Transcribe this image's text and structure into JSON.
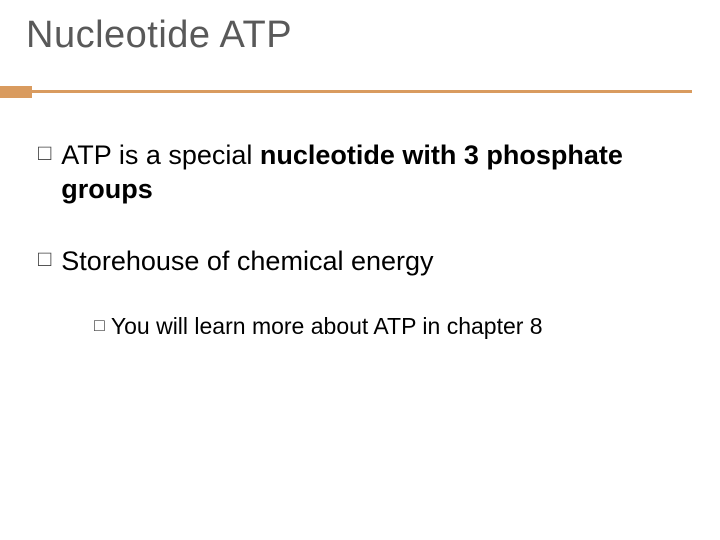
{
  "slide": {
    "title": "Nucleotide ATP",
    "title_color": "#595959",
    "title_fontsize": 38,
    "accent_color": "#d99b5f",
    "rule_color": "#d99b5f",
    "background_color": "#ffffff",
    "text_color": "#000000",
    "bullet_glyph": "□",
    "bullets": [
      {
        "runs": [
          {
            "text": "ATP is a special ",
            "bold": false
          },
          {
            "text": "nucleotide with 3 phosphate groups",
            "bold": true
          }
        ],
        "children": []
      },
      {
        "runs": [
          {
            "text": "Storehouse of chemical energy",
            "bold": false
          }
        ],
        "children": [
          {
            "runs": [
              {
                "text": "You",
                "bold": false
              },
              {
                "text": " will learn more about ATP in chapter 8",
                "bold": false
              }
            ]
          }
        ]
      }
    ],
    "body_fontsize": 27,
    "sub_fontsize": 23
  }
}
